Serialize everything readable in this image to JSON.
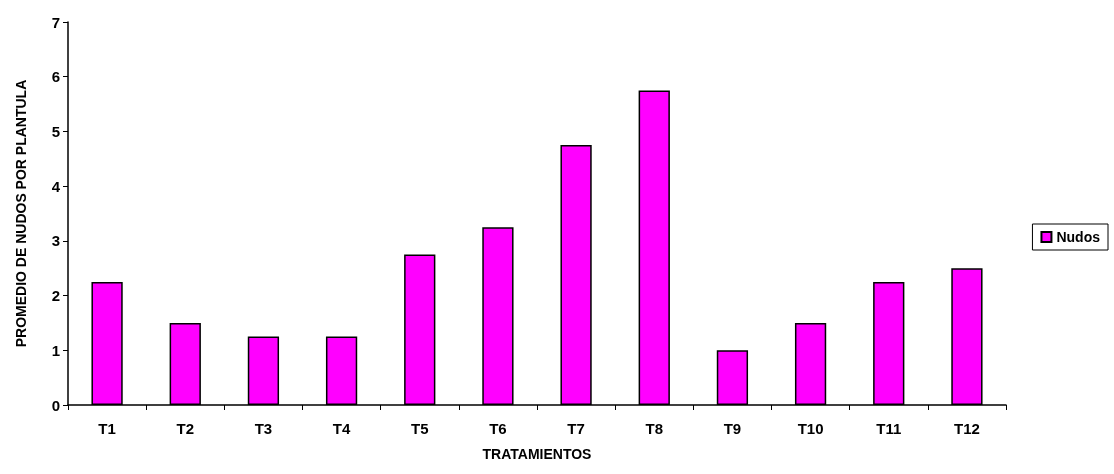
{
  "chart_data": {
    "type": "bar",
    "xlabel": "TRATAMIENTOS",
    "ylabel": "PROMEDIO DE NUDOS POR PLANTULA",
    "categories": [
      "T1",
      "T2",
      "T3",
      "T4",
      "T5",
      "T6",
      "T7",
      "T8",
      "T9",
      "T10",
      "T11",
      "T12"
    ],
    "series": [
      {
        "name": "Nudos",
        "color": "#ff00ff",
        "values": [
          2.25,
          1.5,
          1.25,
          1.25,
          2.75,
          3.25,
          4.75,
          5.75,
          1.0,
          1.5,
          2.25,
          2.5
        ]
      }
    ],
    "ylim": [
      0,
      7
    ],
    "yticks": [
      0,
      1,
      2,
      3,
      4,
      5,
      6,
      7
    ],
    "grid": false,
    "legend": "right"
  }
}
